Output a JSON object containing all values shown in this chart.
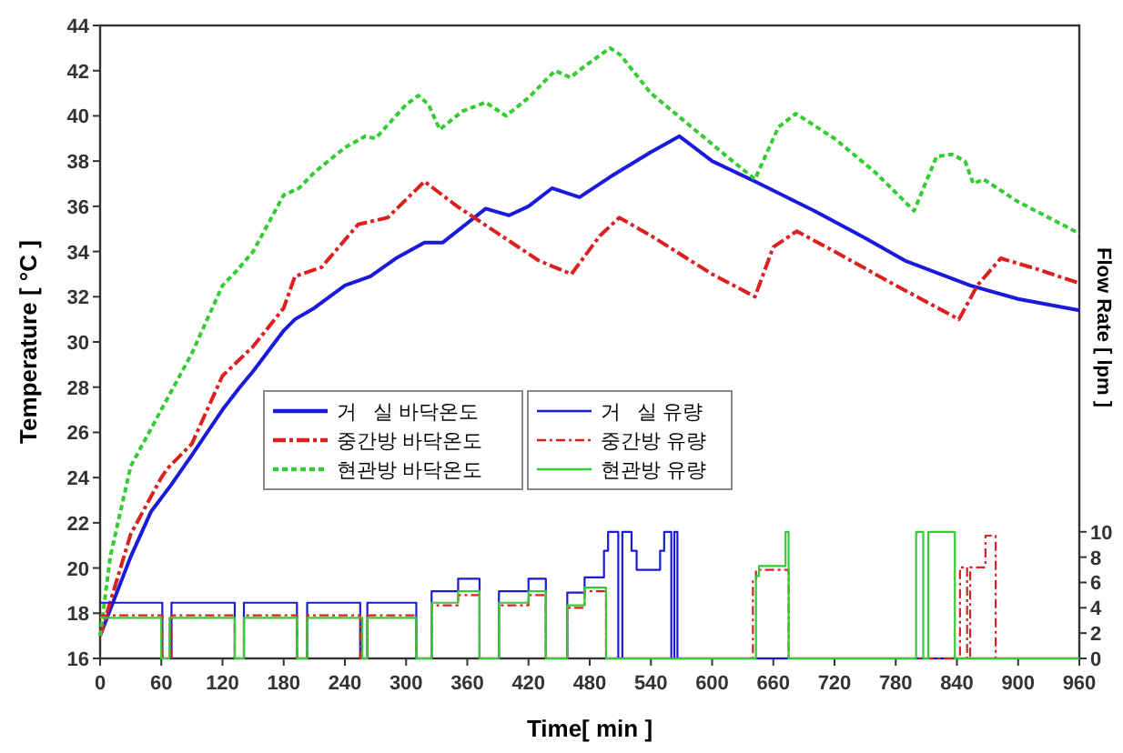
{
  "chart_data": {
    "type": "line",
    "xlabel": "Time[ min ]",
    "ylabel": "Temperature [ °C ]",
    "y2label": "Flow Rate [ lpm ]",
    "xlim": [
      0,
      960
    ],
    "xticks": [
      0,
      60,
      120,
      180,
      240,
      300,
      360,
      420,
      480,
      540,
      600,
      660,
      720,
      780,
      840,
      900,
      960
    ],
    "ylim": [
      16,
      44
    ],
    "yticks": [
      16,
      18,
      20,
      22,
      24,
      26,
      28,
      30,
      32,
      34,
      36,
      38,
      40,
      42,
      44
    ],
    "y2lim": [
      0,
      50
    ],
    "y2ticks": [
      0,
      2,
      4,
      6,
      8,
      10
    ],
    "legend": "left",
    "grid": false,
    "series": [
      {
        "name": "거   실 바닥온도",
        "color": "#1a1adc",
        "line_style": "solid",
        "x": [
          0,
          30,
          50,
          70,
          90,
          120,
          137,
          150,
          180,
          191,
          210,
          240,
          265,
          290,
          318,
          336,
          378,
          401,
          420,
          443,
          470,
          500,
          540,
          568,
          600,
          642,
          700,
          750,
          789,
          853,
          900,
          960
        ],
        "values": [
          17,
          20.5,
          22.5,
          23.7,
          25,
          27,
          28,
          28.7,
          30.5,
          31,
          31.5,
          32.5,
          32.9,
          33.7,
          34.4,
          34.4,
          35.9,
          35.6,
          36,
          36.8,
          36.4,
          37.3,
          38.4,
          39.1,
          38,
          37.1,
          35.8,
          34.6,
          33.6,
          32.5,
          31.9,
          31.4
        ]
      },
      {
        "name": "중간방 바닥온도",
        "color": "#dc2020",
        "line_style": "dashed",
        "x": [
          0,
          30,
          60,
          66,
          90,
          120,
          150,
          180,
          191,
          217,
          253,
          282,
          300,
          318,
          350,
          390,
          430,
          462,
          490,
          509,
          540,
          600,
          642,
          660,
          683,
          720,
          780,
          842,
          860,
          883,
          920,
          960
        ],
        "values": [
          17,
          21.5,
          24,
          24.4,
          25.5,
          28.5,
          29.8,
          31.5,
          32.9,
          33.3,
          35.2,
          35.5,
          36.3,
          37.1,
          36,
          34.8,
          33.6,
          33,
          34.7,
          35.5,
          34.7,
          33,
          32,
          34.2,
          34.9,
          34,
          32.5,
          31,
          32.5,
          33.7,
          33.2,
          32.6
        ]
      },
      {
        "name": "현관방 바닥온도",
        "color": "#33cc33",
        "line_style": "dotted",
        "x": [
          0,
          10,
          30,
          60,
          90,
          120,
          135,
          150,
          180,
          195,
          210,
          240,
          260,
          270,
          300,
          312,
          322,
          333,
          355,
          378,
          398,
          420,
          446,
          461,
          475,
          500,
          510,
          540,
          580,
          620,
          642,
          665,
          682,
          720,
          760,
          798,
          820,
          835,
          848,
          856,
          866,
          900,
          960
        ],
        "values": [
          17,
          20.5,
          24.5,
          27,
          29.5,
          32.5,
          33.2,
          34,
          36.5,
          36.8,
          37.5,
          38.6,
          39.1,
          39,
          40.5,
          40.9,
          40.5,
          39.4,
          40.2,
          40.6,
          40,
          40.8,
          42,
          41.7,
          42.2,
          43,
          42.7,
          41,
          39.5,
          38,
          37.2,
          39.5,
          40.1,
          39,
          37.5,
          35.8,
          38.2,
          38.3,
          38,
          37,
          37.2,
          36.2,
          34.8
        ]
      },
      {
        "name": "거   실 유량",
        "color": "#1a1adc",
        "type": "step",
        "axis": "y2",
        "line_style": "solid",
        "x": [
          0,
          61,
          70,
          132,
          141,
          193,
          203,
          255,
          262,
          310,
          325,
          351,
          372,
          391,
          420,
          437,
          458,
          475,
          494,
          498,
          508,
          512,
          521,
          526,
          549,
          553,
          560,
          563,
          566,
          960
        ],
        "values": [
          4.4,
          0,
          4.4,
          0,
          4.4,
          0,
          4.4,
          0,
          4.4,
          0,
          5.3,
          6.3,
          0,
          5.3,
          6.3,
          0,
          5.2,
          6.4,
          8.5,
          10,
          0,
          10,
          8.5,
          7,
          8.5,
          10,
          0,
          10,
          0,
          0
        ]
      },
      {
        "name": "중간방 유량",
        "color": "#dc2020",
        "type": "step",
        "axis": "y2",
        "line_style": "dashed",
        "x": [
          0,
          61,
          70,
          132,
          141,
          193,
          203,
          255,
          262,
          310,
          325,
          351,
          372,
          391,
          420,
          437,
          458,
          475,
          496,
          640,
          643,
          675,
          843,
          850,
          853,
          868,
          878,
          960
        ],
        "values": [
          3.4,
          0,
          3.4,
          0,
          3.4,
          0,
          3.4,
          0,
          3.4,
          0,
          4.2,
          5,
          0,
          4.2,
          5,
          0,
          4,
          5.3,
          0,
          6.2,
          7,
          0,
          7.2,
          0,
          7.2,
          9.7,
          0,
          0
        ]
      },
      {
        "name": "현관방 유량",
        "color": "#33cc33",
        "type": "step",
        "axis": "y2",
        "line_style": "solid",
        "x": [
          0,
          60,
          68,
          132,
          141,
          193,
          203,
          257,
          262,
          310,
          325,
          351,
          372,
          391,
          420,
          437,
          458,
          475,
          496,
          643,
          646,
          672,
          675,
          800,
          807,
          812,
          838,
          960
        ],
        "values": [
          3.2,
          0,
          3.2,
          0,
          3.2,
          0,
          3.2,
          0,
          3.2,
          0,
          4.4,
          5.3,
          0,
          4.4,
          5.3,
          0,
          4.2,
          5.6,
          0,
          6.5,
          7.3,
          10,
          0,
          10,
          0,
          10,
          0,
          0
        ]
      }
    ]
  }
}
